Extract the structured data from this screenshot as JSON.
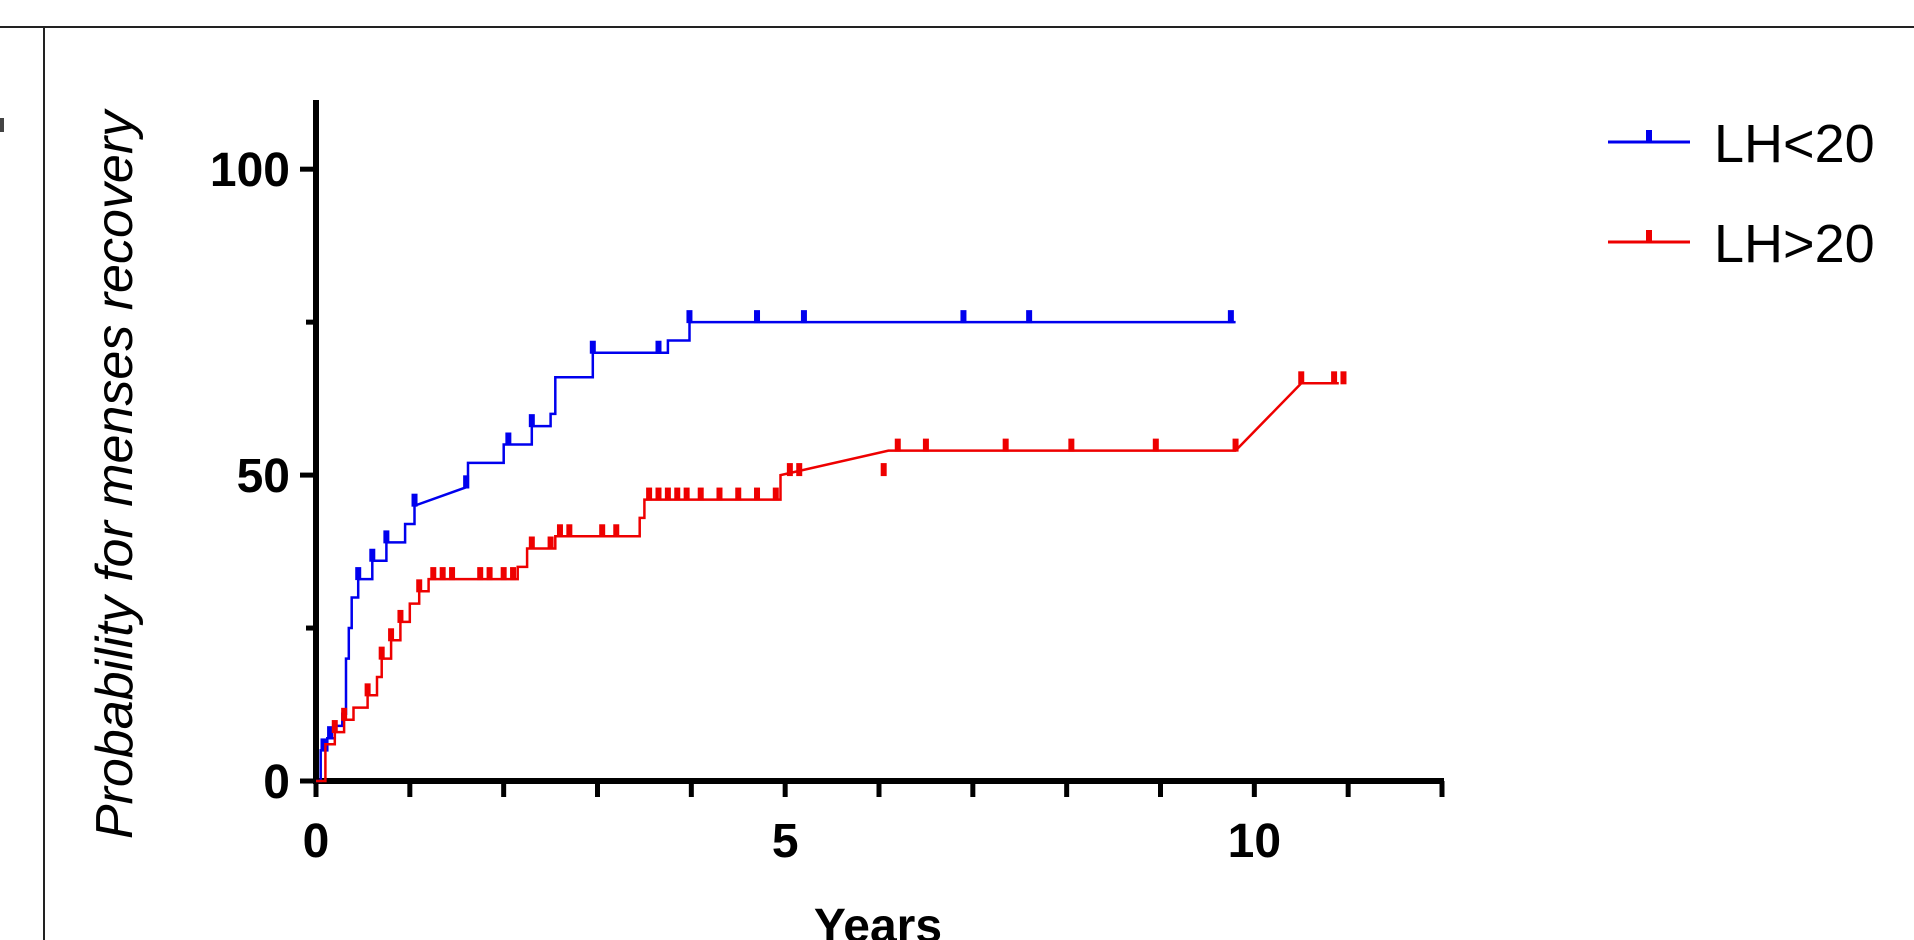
{
  "chart_data": {
    "type": "line",
    "subtype": "kaplan-meier",
    "title": "",
    "xlabel": "Years",
    "ylabel": "Probability for menses recovery",
    "xlim": [
      0,
      12
    ],
    "ylim": [
      0,
      110
    ],
    "x_ticks": [
      0,
      5,
      10
    ],
    "y_ticks": [
      0,
      50,
      100
    ],
    "grid": false,
    "legend_position": "top-right",
    "series": [
      {
        "name": "LH<20",
        "color": "#0000ee",
        "steps": [
          [
            0,
            0
          ],
          [
            0.05,
            5
          ],
          [
            0.12,
            7
          ],
          [
            0.2,
            9
          ],
          [
            0.28,
            11
          ],
          [
            0.32,
            20
          ],
          [
            0.35,
            25
          ],
          [
            0.38,
            30
          ],
          [
            0.45,
            33
          ],
          [
            0.6,
            36
          ],
          [
            0.75,
            39
          ],
          [
            0.95,
            42
          ],
          [
            1.05,
            45
          ],
          [
            1.6,
            48
          ],
          [
            1.62,
            52
          ],
          [
            2.0,
            55
          ],
          [
            2.3,
            58
          ],
          [
            2.5,
            60
          ],
          [
            2.55,
            66
          ],
          [
            2.95,
            70
          ],
          [
            3.65,
            70
          ],
          [
            3.75,
            72
          ],
          [
            3.98,
            75
          ],
          [
            9.8,
            75
          ]
        ],
        "censored": [
          0.08,
          0.15,
          0.45,
          0.6,
          0.75,
          1.05,
          1.6,
          2.05,
          2.3,
          2.95,
          3.65,
          3.98,
          4.7,
          5.2,
          6.9,
          7.6,
          9.75
        ]
      },
      {
        "name": "LH>20",
        "color": "#ee0000",
        "steps": [
          [
            0,
            0
          ],
          [
            0.1,
            6
          ],
          [
            0.2,
            8
          ],
          [
            0.3,
            10
          ],
          [
            0.4,
            12
          ],
          [
            0.55,
            14
          ],
          [
            0.65,
            17
          ],
          [
            0.7,
            20
          ],
          [
            0.8,
            23
          ],
          [
            0.9,
            26
          ],
          [
            1.0,
            29
          ],
          [
            1.1,
            31
          ],
          [
            1.2,
            33
          ],
          [
            2.05,
            33
          ],
          [
            2.15,
            35
          ],
          [
            2.25,
            38
          ],
          [
            2.55,
            40
          ],
          [
            3.3,
            40
          ],
          [
            3.45,
            43
          ],
          [
            3.5,
            46
          ],
          [
            4.9,
            46
          ],
          [
            4.95,
            50
          ],
          [
            6.1,
            54
          ],
          [
            9.8,
            54
          ],
          [
            10.5,
            65
          ],
          [
            10.9,
            65
          ]
        ],
        "censored": [
          0.2,
          0.3,
          0.55,
          0.7,
          0.8,
          0.9,
          1.1,
          1.25,
          1.35,
          1.45,
          1.75,
          1.85,
          2.0,
          2.1,
          2.3,
          2.5,
          2.6,
          2.7,
          3.05,
          3.2,
          3.55,
          3.65,
          3.75,
          3.85,
          3.95,
          4.1,
          4.3,
          4.5,
          4.7,
          4.9,
          5.05,
          5.15,
          6.05,
          6.2,
          6.5,
          7.35,
          8.05,
          8.95,
          9.8,
          10.5,
          10.85,
          10.95
        ]
      }
    ]
  }
}
